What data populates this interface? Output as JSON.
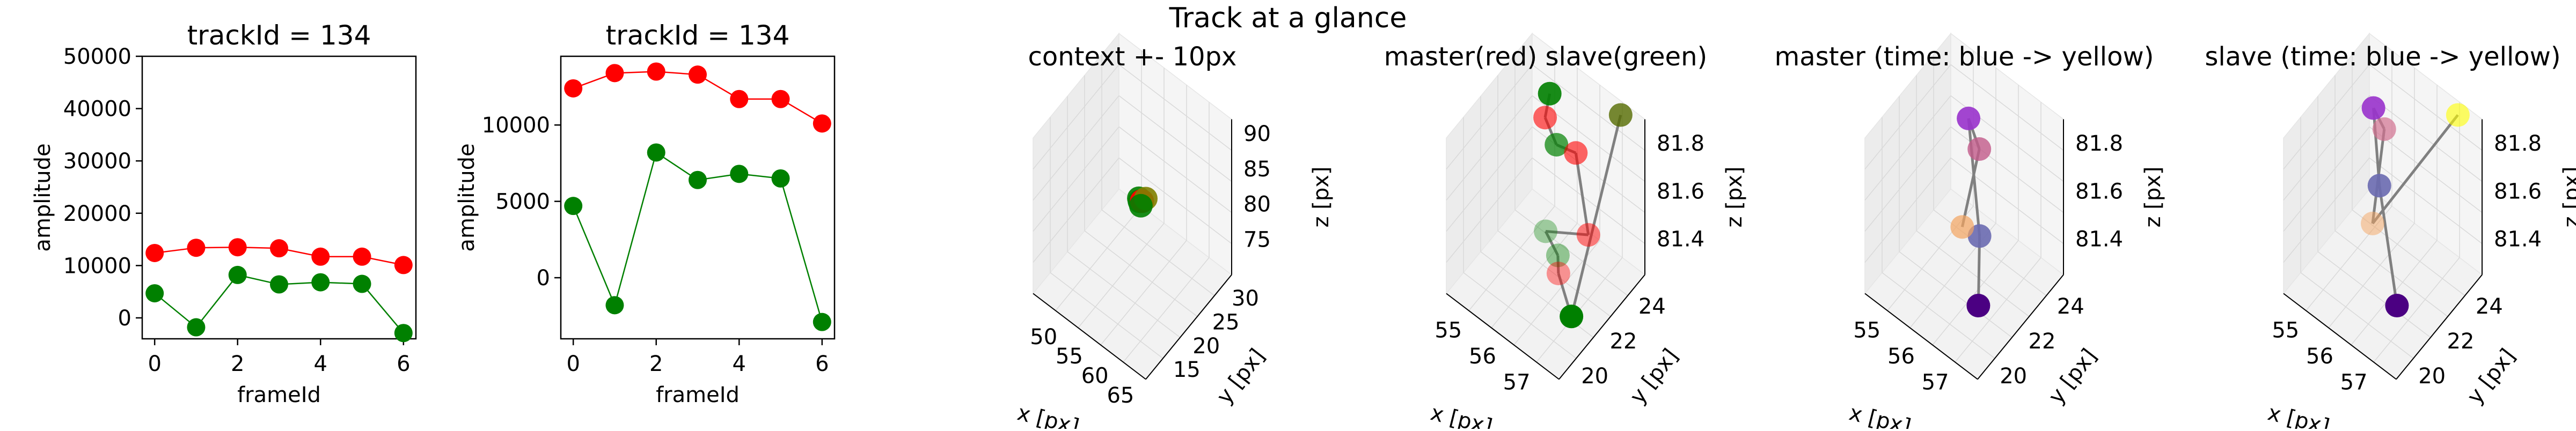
{
  "figure": {
    "suptitle": "Track at a glance",
    "colors": {
      "red": "#ff0000",
      "green": "#008000",
      "gray": "#808080",
      "pane": "#f2f2f2"
    }
  },
  "chart_data": [
    {
      "type": "line",
      "title": "trackId = 134",
      "xlabel": "frameId",
      "ylabel": "amplitude",
      "x": [
        0,
        1,
        2,
        3,
        4,
        5,
        6
      ],
      "xticks": [
        "0",
        "2",
        "4",
        "6"
      ],
      "yticks": [
        "0",
        "10000",
        "20000",
        "30000",
        "40000",
        "50000"
      ],
      "ylim": [
        -4000,
        50000
      ],
      "series": [
        {
          "color": "#ff0000",
          "values": [
            12400,
            13400,
            13500,
            13300,
            11700,
            11700,
            10100
          ]
        },
        {
          "color": "#008000",
          "values": [
            4700,
            -1800,
            8200,
            6400,
            6800,
            6500,
            -2900
          ]
        }
      ]
    },
    {
      "type": "line",
      "title": "trackId = 134",
      "xlabel": "frameId",
      "ylabel": "amplitude",
      "x": [
        0,
        1,
        2,
        3,
        4,
        5,
        6
      ],
      "xticks": [
        "0",
        "2",
        "4",
        "6"
      ],
      "yticks": [
        "0",
        "5000",
        "10000"
      ],
      "ylim": [
        -4000,
        14500
      ],
      "series": [
        {
          "color": "#ff0000",
          "values": [
            12400,
            13400,
            13500,
            13300,
            11700,
            11700,
            10100
          ]
        },
        {
          "color": "#008000",
          "values": [
            4700,
            -1800,
            8200,
            6400,
            6800,
            6500,
            -2900
          ]
        }
      ]
    },
    {
      "type": "scatter3d",
      "title": "context +- 10px",
      "xlabel": "x [px]",
      "ylabel": "y [px]",
      "zlabel": "z [px]",
      "xticks": [
        "50",
        "55",
        "60",
        "65"
      ],
      "yticks": [
        "15",
        "20",
        "25",
        "30"
      ],
      "zticks": [
        "75",
        "80",
        "85",
        "90"
      ],
      "xlim": [
        45,
        67
      ],
      "ylim": [
        10,
        32
      ],
      "zlim": [
        70,
        92
      ],
      "points": [
        {
          "x": 56.5,
          "y": 22.0,
          "z": 81.75,
          "color": "#008000"
        },
        {
          "x": 56.7,
          "y": 21.9,
          "z": 81.5,
          "color": "#008000"
        },
        {
          "x": 56.9,
          "y": 22.2,
          "z": 81.45,
          "color": "#ff0000"
        },
        {
          "x": 57.1,
          "y": 22.1,
          "z": 81.6,
          "color": "#ff0000"
        },
        {
          "x": 57.4,
          "y": 22.6,
          "z": 81.8,
          "color": "#808000"
        },
        {
          "x": 57.2,
          "y": 21.6,
          "z": 81.35,
          "color": "#008000"
        }
      ]
    },
    {
      "type": "scatter3d",
      "title": "master(red) slave(green)",
      "xlabel": "x [px]",
      "ylabel": "y [px]",
      "zlabel": "z [px]",
      "xticks": [
        "55",
        "56",
        "57"
      ],
      "yticks": [
        "20",
        "22",
        "24"
      ],
      "zticks": [
        "81.4",
        "81.6",
        "81.8"
      ],
      "xlim": [
        54.5,
        57.8
      ],
      "ylim": [
        19,
        25
      ],
      "zlim": [
        81.25,
        81.9
      ],
      "path": [
        0,
        1,
        2,
        3,
        4,
        5,
        6,
        7,
        8,
        9
      ],
      "points": [
        {
          "x": 55.6,
          "y": 23.6,
          "z": 81.87,
          "color": "#008000",
          "alpha": 0.9
        },
        {
          "x": 55.8,
          "y": 22.8,
          "z": 81.85,
          "color": "#ff0000",
          "alpha": 0.6
        },
        {
          "x": 56.3,
          "y": 22.4,
          "z": 81.82,
          "color": "#008000",
          "alpha": 0.7
        },
        {
          "x": 56.7,
          "y": 22.8,
          "z": 81.8,
          "color": "#ff0000",
          "alpha": 0.6
        },
        {
          "x": 56.9,
          "y": 23.2,
          "z": 81.45,
          "color": "#ff0000",
          "alpha": 0.5
        },
        {
          "x": 55.9,
          "y": 22.6,
          "z": 81.4,
          "color": "#008000",
          "alpha": 0.35
        },
        {
          "x": 56.3,
          "y": 22.5,
          "z": 81.35,
          "color": "#008000",
          "alpha": 0.4
        },
        {
          "x": 56.4,
          "y": 22.3,
          "z": 81.3,
          "color": "#ff0000",
          "alpha": 0.4
        },
        {
          "x": 57.2,
          "y": 21.3,
          "z": 81.28,
          "color": "#008000",
          "alpha": 1.0
        },
        {
          "x": 57.3,
          "y": 24.5,
          "z": 81.9,
          "color": "#556b00",
          "alpha": 0.8
        }
      ]
    },
    {
      "type": "scatter3d",
      "title": "master (time: blue -> yellow)",
      "xlabel": "x [px]",
      "ylabel": "y [px]",
      "zlabel": "z [px]",
      "xticks": [
        "55",
        "56",
        "57"
      ],
      "yticks": [
        "20",
        "22",
        "24"
      ],
      "zticks": [
        "81.4",
        "81.6",
        "81.8"
      ],
      "xlim": [
        54.5,
        57.8
      ],
      "ylim": [
        19,
        25
      ],
      "zlim": [
        81.25,
        81.9
      ],
      "path": [
        0,
        1,
        2,
        3,
        4
      ],
      "points": [
        {
          "x": 56.9,
          "y": 21.2,
          "z": 81.3,
          "color": "#4b0082",
          "alpha": 1.0
        },
        {
          "x": 56.6,
          "y": 22.0,
          "z": 81.5,
          "color": "#6a6ab0",
          "alpha": 0.9
        },
        {
          "x": 55.9,
          "y": 22.9,
          "z": 81.85,
          "color": "#9932cc",
          "alpha": 0.9
        },
        {
          "x": 56.3,
          "y": 22.7,
          "z": 81.78,
          "color": "#c25a8a",
          "alpha": 0.8
        },
        {
          "x": 55.8,
          "y": 22.7,
          "z": 81.4,
          "color": "#f4a460",
          "alpha": 0.7
        }
      ]
    },
    {
      "type": "scatter3d",
      "title": "slave (time: blue -> yellow)",
      "xlabel": "x [px]",
      "ylabel": "y [px]",
      "zlabel": "z [px]",
      "xticks": [
        "55",
        "56",
        "57"
      ],
      "yticks": [
        "20",
        "22",
        "24"
      ],
      "zticks": [
        "81.4",
        "81.6",
        "81.8"
      ],
      "xlim": [
        54.5,
        57.8
      ],
      "ylim": [
        19,
        25
      ],
      "zlim": [
        81.25,
        81.9
      ],
      "path": [
        0,
        1,
        2,
        3,
        4,
        5
      ],
      "points": [
        {
          "x": 56.9,
          "y": 21.2,
          "z": 81.3,
          "color": "#4b0082",
          "alpha": 1.0
        },
        {
          "x": 55.8,
          "y": 22.6,
          "z": 81.58,
          "color": "#6a6ab0",
          "alpha": 0.9
        },
        {
          "x": 55.5,
          "y": 22.9,
          "z": 81.85,
          "color": "#9932cc",
          "alpha": 0.9
        },
        {
          "x": 55.9,
          "y": 22.7,
          "z": 81.82,
          "color": "#d27090",
          "alpha": 0.7
        },
        {
          "x": 55.6,
          "y": 22.6,
          "z": 81.4,
          "color": "#f4a460",
          "alpha": 0.5
        },
        {
          "x": 57.3,
          "y": 24.5,
          "z": 81.9,
          "color": "#ffff00",
          "alpha": 0.6
        }
      ]
    }
  ]
}
